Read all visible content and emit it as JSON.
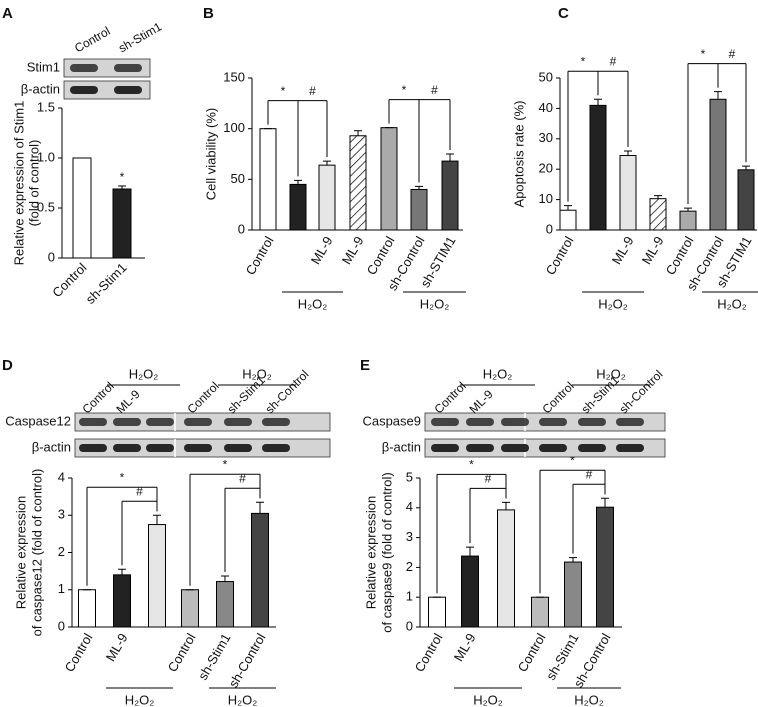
{
  "chart_data": [
    {
      "type": "bar",
      "panel": "A",
      "blot": {
        "lanes": [
          "Control",
          "sh-Stim1"
        ],
        "rows": [
          "Stim1",
          "β-actin"
        ],
        "groups": []
      },
      "ylabel": [
        "Relative expression of Stim1",
        "(fold of control)"
      ],
      "categories": [
        "Control",
        "sh-Stim1"
      ],
      "values": [
        1.0,
        0.69
      ],
      "errors": [
        0,
        0.03
      ],
      "colors": [
        "#ffffff",
        "#222222"
      ],
      "ylim": [
        0,
        1.5
      ],
      "yticks": [
        0,
        0.5,
        {
          "value": 1,
          "label": "1.0"
        },
        1.5
      ],
      "groups": [],
      "brackets": [
        {
          "bars": [
            1
          ],
          "labels": [
            "*"
          ]
        }
      ]
    },
    {
      "type": "bar",
      "panel": "B",
      "ylabel": [
        "Cell viability (%)"
      ],
      "categories": [
        "Control",
        null,
        "ML-9",
        "ML-9",
        "Control",
        "sh-Control",
        "sh-STIM1"
      ],
      "values": [
        100,
        45,
        64,
        93,
        101,
        40,
        68
      ],
      "errors": [
        0,
        4,
        4,
        5,
        0,
        3,
        7
      ],
      "colors": [
        "#ffffff",
        "#222222",
        "#e6e6e6",
        "#ffffff",
        "#aaaaaa",
        "#777777",
        "#444444"
      ],
      "hatch": [
        false,
        false,
        false,
        true,
        false,
        false,
        false
      ],
      "ylim": [
        0,
        150
      ],
      "yticks": [
        0,
        50,
        100,
        150
      ],
      "groups": [
        {
          "label": "H₂O₂",
          "bars": [
            1,
            2
          ]
        },
        {
          "label": "H₂O₂",
          "bars": [
            5,
            6
          ]
        }
      ],
      "brackets": [
        {
          "bars": [
            0,
            1,
            2
          ],
          "labels": [
            "*",
            "#"
          ]
        },
        {
          "bars": [
            4,
            5,
            6
          ],
          "labels": [
            "*",
            "#"
          ]
        }
      ]
    },
    {
      "type": "bar",
      "panel": "C",
      "ylabel": [
        "Apoptosis rate (%)"
      ],
      "categories": [
        "Control",
        null,
        "ML-9",
        "ML-9",
        "Control",
        "sh-Control",
        "sh-STIM1"
      ],
      "values": [
        6.5,
        41,
        24.5,
        10.3,
        6.2,
        43,
        19.8
      ],
      "errors": [
        1.5,
        2,
        1.5,
        1,
        1,
        2.5,
        1.2
      ],
      "colors": [
        "#ffffff",
        "#222222",
        "#e6e6e6",
        "#ffffff",
        "#aaaaaa",
        "#777777",
        "#444444"
      ],
      "hatch": [
        false,
        false,
        false,
        true,
        false,
        false,
        false
      ],
      "ylim": [
        0,
        50
      ],
      "yticks": [
        0,
        10,
        20,
        30,
        40,
        50
      ],
      "groups": [
        {
          "label": "H₂O₂",
          "bars": [
            1,
            2
          ]
        },
        {
          "label": "H₂O₂",
          "bars": [
            5,
            6
          ]
        }
      ],
      "brackets": [
        {
          "bars": [
            0,
            1,
            2
          ],
          "labels": [
            "*",
            "#"
          ]
        },
        {
          "bars": [
            4,
            5,
            6
          ],
          "labels": [
            "*",
            "#"
          ]
        }
      ]
    },
    {
      "type": "bar",
      "panel": "D",
      "blot": {
        "lanes": [
          "Control",
          "ML-9",
          null,
          "Control",
          "sh-Stim1",
          "sh-Control"
        ],
        "rows": [
          "Caspase12",
          "β-actin"
        ],
        "groups": [
          {
            "label": "H₂O₂",
            "lanes": [
              1,
              2
            ]
          },
          {
            "label": "H₂O₂",
            "lanes": [
              4,
              5
            ]
          }
        ]
      },
      "ylabel": [
        "Relative expression",
        "of caspase12 (fold of control)"
      ],
      "categories": [
        "Control",
        "ML-9",
        null,
        "Control",
        "sh-Stim1",
        "sh-Control"
      ],
      "values": [
        1.0,
        1.4,
        2.75,
        1.0,
        1.22,
        3.05
      ],
      "errors": [
        0,
        0.15,
        0.25,
        0,
        0.15,
        0.3
      ],
      "colors": [
        "#ffffff",
        "#222222",
        "#e6e6e6",
        "#bbbbbb",
        "#888888",
        "#444444"
      ],
      "ylim": [
        0,
        4
      ],
      "yticks": [
        0,
        1,
        2,
        3,
        4
      ],
      "groups": [
        {
          "label": "H₂O₂",
          "bars": [
            1,
            2
          ]
        },
        {
          "label": "H₂O₂",
          "bars": [
            4,
            5
          ]
        }
      ],
      "brackets": [
        {
          "bars": [
            0,
            2
          ],
          "labels": [
            "*"
          ]
        },
        {
          "bars": [
            1,
            2
          ],
          "labels": [
            "#"
          ]
        },
        {
          "bars": [
            3,
            5
          ],
          "labels": [
            "*"
          ]
        },
        {
          "bars": [
            4,
            5
          ],
          "labels": [
            "#"
          ]
        }
      ]
    },
    {
      "type": "bar",
      "panel": "E",
      "blot": {
        "lanes": [
          "Control",
          "ML-9",
          null,
          "Control",
          "sh-Stim1",
          "sh-Control"
        ],
        "rows": [
          "Caspase9",
          "β-actin"
        ],
        "groups": [
          {
            "label": "H₂O₂",
            "lanes": [
              1,
              2
            ]
          },
          {
            "label": "H₂O₂",
            "lanes": [
              4,
              5
            ]
          }
        ]
      },
      "ylabel": [
        "Relative expression",
        "of caspase9 (fold of control)"
      ],
      "categories": [
        "Control",
        "ML-9",
        null,
        "Control",
        "sh-Stim1",
        "sh-Control"
      ],
      "values": [
        1.0,
        2.38,
        3.93,
        1.0,
        2.18,
        4.02
      ],
      "errors": [
        0,
        0.3,
        0.25,
        0,
        0.15,
        0.3
      ],
      "colors": [
        "#ffffff",
        "#222222",
        "#e6e6e6",
        "#bbbbbb",
        "#888888",
        "#444444"
      ],
      "ylim": [
        0,
        5
      ],
      "yticks": [
        0,
        1,
        2,
        3,
        4,
        5
      ],
      "groups": [
        {
          "label": "H₂O₂",
          "bars": [
            1,
            2
          ]
        },
        {
          "label": "H₂O₂",
          "bars": [
            4,
            5
          ]
        }
      ],
      "brackets": [
        {
          "bars": [
            0,
            2
          ],
          "labels": [
            "*"
          ]
        },
        {
          "bars": [
            1,
            2
          ],
          "labels": [
            "#"
          ]
        },
        {
          "bars": [
            3,
            5
          ],
          "labels": [
            "*"
          ]
        },
        {
          "bars": [
            4,
            5
          ],
          "labels": [
            "#"
          ]
        }
      ]
    }
  ]
}
